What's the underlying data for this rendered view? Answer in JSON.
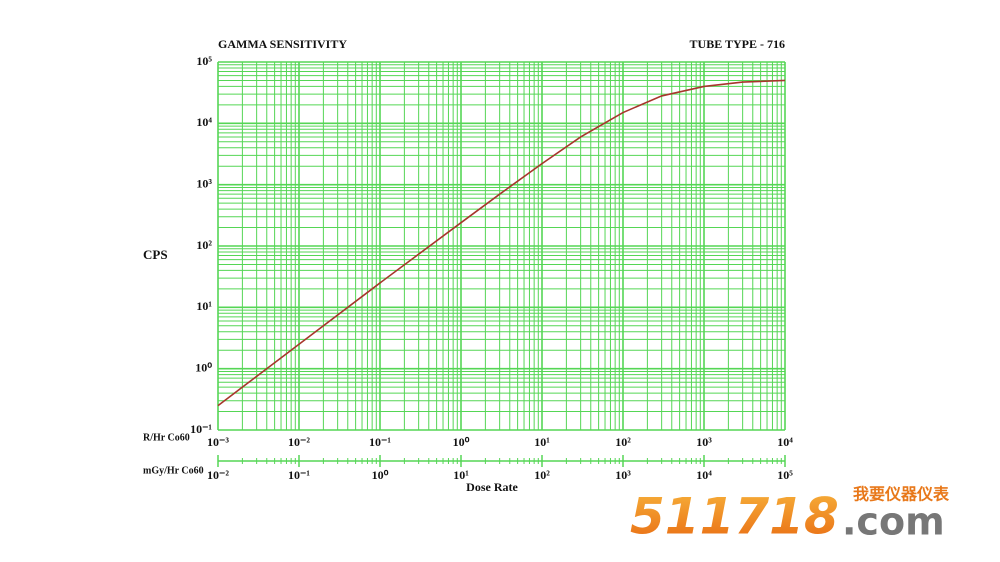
{
  "chart_data": {
    "type": "line",
    "title": "GAMMA SENSITIVITY",
    "subtitle": "TUBE TYPE - 716",
    "ylabel": "CPS",
    "xlabel": "Dose Rate",
    "xaxis_label": "R/Hr Co60",
    "x2axis_label": "mGy/Hr Co60",
    "xscale": "log",
    "yscale": "log",
    "grid": true,
    "color": "#a8352c",
    "x": [
      0.001,
      0.01,
      0.1,
      1,
      3,
      10,
      30,
      100,
      300,
      1000,
      3000,
      10000
    ],
    "values": [
      0.25,
      2.5,
      25,
      240,
      700,
      2200,
      6000,
      15000,
      28000,
      40000,
      47000,
      50000
    ],
    "xlim": [
      0.001,
      10000
    ],
    "xticks": [
      {
        "value": 0.001,
        "label": "10⁻³"
      },
      {
        "value": 0.01,
        "label": "10⁻²"
      },
      {
        "value": 0.1,
        "label": "10⁻¹"
      },
      {
        "value": 1,
        "label": "10⁰"
      },
      {
        "value": 10,
        "label": "10¹"
      },
      {
        "value": 100,
        "label": "10²"
      },
      {
        "value": 1000,
        "label": "10³"
      },
      {
        "value": 10000,
        "label": "10⁴"
      }
    ],
    "x2lim": [
      0.01,
      100000
    ],
    "x2ticks": [
      {
        "value": 0.01,
        "label": "10⁻²"
      },
      {
        "value": 0.1,
        "label": "10⁻¹"
      },
      {
        "value": 1,
        "label": "10⁰"
      },
      {
        "value": 10,
        "label": "10¹"
      },
      {
        "value": 100,
        "label": "10²"
      },
      {
        "value": 1000,
        "label": "10³"
      },
      {
        "value": 10000,
        "label": "10⁴"
      },
      {
        "value": 100000,
        "label": "10⁵"
      }
    ],
    "ylim": [
      0.1,
      100000
    ],
    "yticks": [
      {
        "value": 0.1,
        "label": "10⁻¹"
      },
      {
        "value": 1,
        "label": "10⁰"
      },
      {
        "value": 10,
        "label": "10¹"
      },
      {
        "value": 100,
        "label": "10²"
      },
      {
        "value": 1000,
        "label": "10³"
      },
      {
        "value": 10000,
        "label": "10⁴"
      },
      {
        "value": 100000,
        "label": "10⁵"
      }
    ]
  },
  "watermark": {
    "number": "511718",
    "domain": ".com",
    "tagline": "我要仪器仪表"
  }
}
